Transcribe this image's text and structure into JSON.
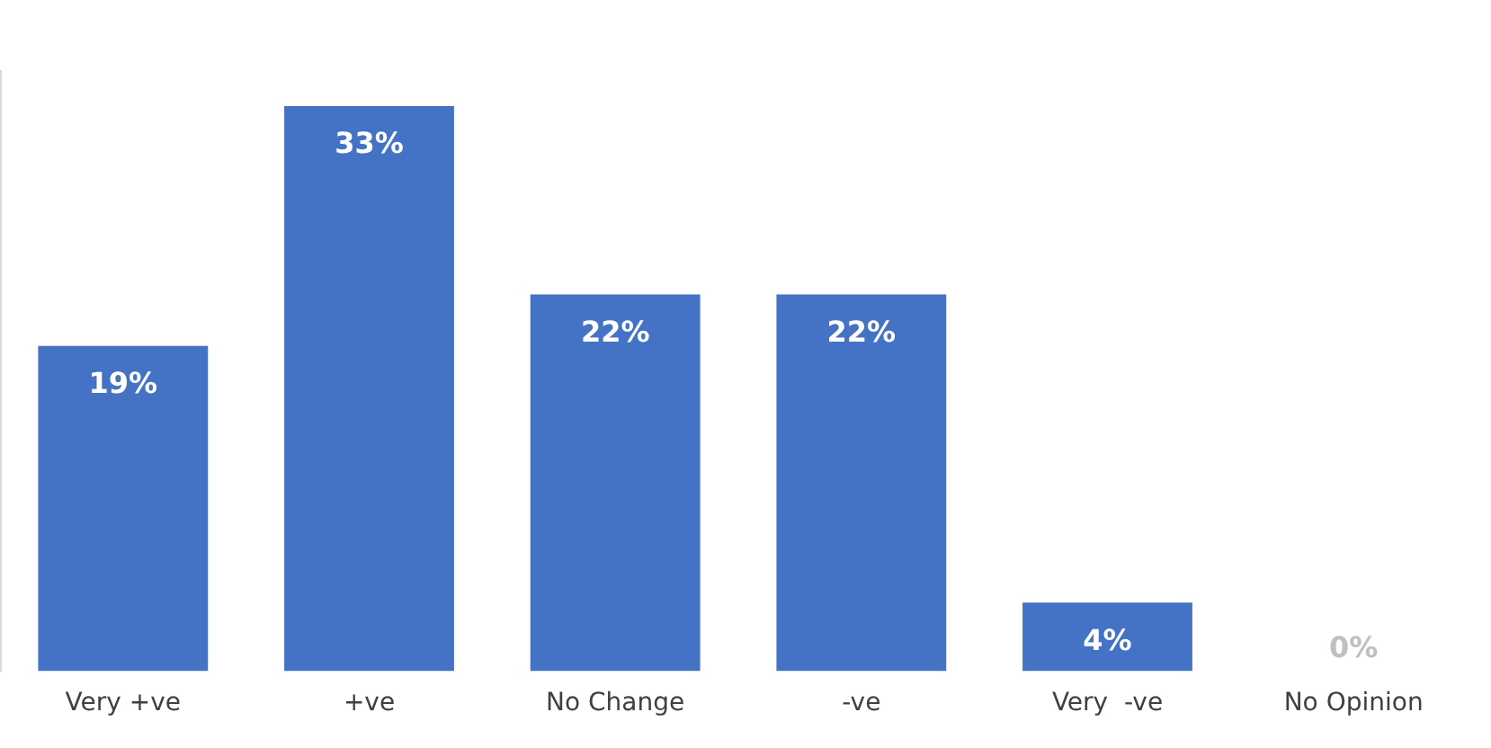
{
  "chart_data": {
    "type": "bar",
    "categories": [
      "Very +ve",
      "+ve",
      "No Change",
      "-ve",
      "Very  -ve",
      "No Opinion"
    ],
    "values": [
      19,
      33,
      22,
      22,
      4,
      0
    ],
    "value_labels": [
      "19%",
      "33%",
      "22%",
      "22%",
      "4%",
      "0%"
    ],
    "color": "#4472c4",
    "grid": false,
    "legend": false
  }
}
